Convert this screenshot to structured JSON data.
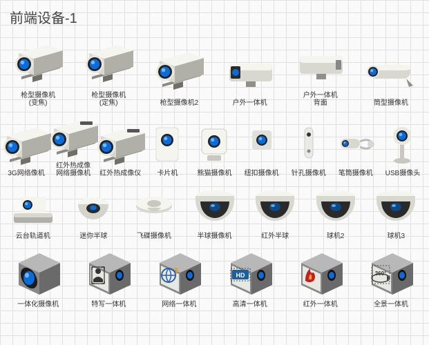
{
  "title": "前端设备-1",
  "palette": {
    "body_light": "#f5f5f0",
    "body_mid": "#d8d8d0",
    "body_dark": "#b0b0a8",
    "lens_outer": "#222222",
    "lens_blue": "#0b6bd8",
    "lens_highlight": "#6fb8ff",
    "metal": "#c0c0c0",
    "dome_dark": "#2a2a2a",
    "iso_top": "#b8b8b8",
    "iso_left": "#888888",
    "iso_right": "#6a6a6a",
    "hd_blue": "#1a5fa0",
    "ir_red": "#c02020",
    "yellow": "#d8a030"
  },
  "rows": [
    {
      "class": "row1",
      "items": [
        {
          "id": "box-zoom",
          "type": "box-cam",
          "label": "枪型摄像机\n(变焦)"
        },
        {
          "id": "box-fixed",
          "type": "box-cam",
          "label": "枪型摄像机\n(定焦)"
        },
        {
          "id": "box-cam2",
          "type": "box-cam",
          "label": "枪型摄像机2"
        },
        {
          "id": "outdoor-unit",
          "type": "housing",
          "label": "户外一体机"
        },
        {
          "id": "outdoor-back",
          "type": "housing-back",
          "label": "户外一体机\n背面"
        },
        {
          "id": "bullet-cam",
          "type": "bullet",
          "label": "筒型摄像机"
        }
      ]
    },
    {
      "class": "row2",
      "items": [
        {
          "id": "3g-cam",
          "type": "box-cam",
          "label": "3G网络像机"
        },
        {
          "id": "ir-netcam",
          "type": "box-cam-ir",
          "label": "红外热成像\n网络摄像机"
        },
        {
          "id": "ir-imager",
          "type": "box-cam-ir",
          "label": "红外热成像仪"
        },
        {
          "id": "card-cam",
          "type": "card",
          "label": "卡片机"
        },
        {
          "id": "cube-cam",
          "type": "cube",
          "label": "熊猫摄像机"
        },
        {
          "id": "button-cam",
          "type": "button",
          "label": "纽扣摄像机"
        },
        {
          "id": "pinhole",
          "type": "pinhole",
          "label": "针孔摄像机"
        },
        {
          "id": "pen-cam",
          "type": "pen",
          "label": "笔筒摄像机"
        },
        {
          "id": "usb-cam",
          "type": "usbcam",
          "label": "USB摄像头"
        }
      ]
    },
    {
      "class": "row3",
      "items": [
        {
          "id": "ptz-track",
          "type": "ptz",
          "label": "云台轨道机"
        },
        {
          "id": "mini-hemi",
          "type": "mini-dome",
          "label": "迷你半球"
        },
        {
          "id": "ufo-cam",
          "type": "ufo",
          "label": "飞碟摄像机"
        },
        {
          "id": "hemi-cam",
          "type": "dome",
          "label": "半球摄像机"
        },
        {
          "id": "ir-hemi",
          "type": "dome",
          "label": "红外半球"
        },
        {
          "id": "ball2",
          "type": "dome",
          "label": "球机2"
        },
        {
          "id": "ball3",
          "type": "dome",
          "label": "球机3"
        }
      ]
    },
    {
      "class": "row4",
      "items": [
        {
          "id": "integrated",
          "type": "iso-lens",
          "label": "一体化摄像机"
        },
        {
          "id": "closeup",
          "type": "iso-icon",
          "icon": "person",
          "label": "特写一体机"
        },
        {
          "id": "net-unit",
          "type": "iso-icon",
          "icon": "ie",
          "label": "网络一体机"
        },
        {
          "id": "hd-unit",
          "type": "iso-icon",
          "icon": "hd",
          "label": "高清一体机"
        },
        {
          "id": "ir-unit",
          "type": "iso-icon",
          "icon": "ir",
          "label": "红外一体机"
        },
        {
          "id": "pano-unit",
          "type": "iso-icon",
          "icon": "360",
          "label": "全景一体机"
        }
      ]
    }
  ]
}
